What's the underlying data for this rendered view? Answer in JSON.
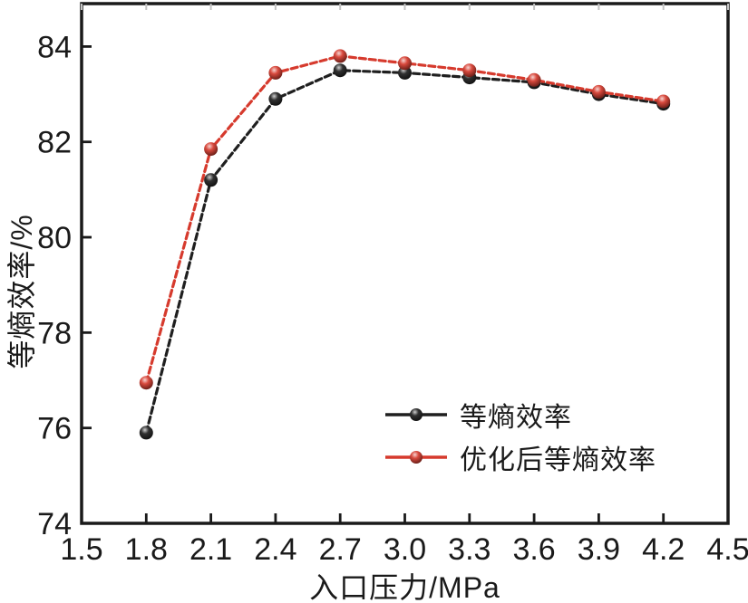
{
  "figure": {
    "background_color": "#ffffff",
    "frame_color": "#1a1a1a"
  },
  "chart_data": {
    "type": "line",
    "title": "",
    "xlabel": "入口压力/MPa",
    "ylabel": "等熵效率/%",
    "xlim": [
      1.5,
      4.5
    ],
    "ylim": [
      74,
      84.9
    ],
    "x_tick_labels": [
      "1.5",
      "1.8",
      "2.1",
      "2.4",
      "2.7",
      "3.0",
      "3.3",
      "3.6",
      "3.9",
      "4.2",
      "4.5"
    ],
    "y_tick_labels": [
      "74",
      "76",
      "78",
      "80",
      "82",
      "84"
    ],
    "grid": false,
    "legend_position": "inside-bottom-right",
    "x": [
      1.8,
      2.1,
      2.4,
      2.7,
      3.0,
      3.3,
      3.6,
      3.9,
      4.2
    ],
    "series": [
      {
        "name": "等熵效率",
        "color": "#1f1f1f",
        "marker": "sphere",
        "line_style": "dashed",
        "values": [
          75.9,
          81.2,
          82.9,
          83.5,
          83.45,
          83.35,
          83.25,
          83.0,
          82.8
        ]
      },
      {
        "name": "优化后等熵效率",
        "color": "#d63a2d",
        "marker": "sphere",
        "line_style": "dashed",
        "values": [
          76.95,
          81.85,
          83.45,
          83.8,
          83.65,
          83.5,
          83.3,
          83.05,
          82.85
        ]
      }
    ]
  }
}
